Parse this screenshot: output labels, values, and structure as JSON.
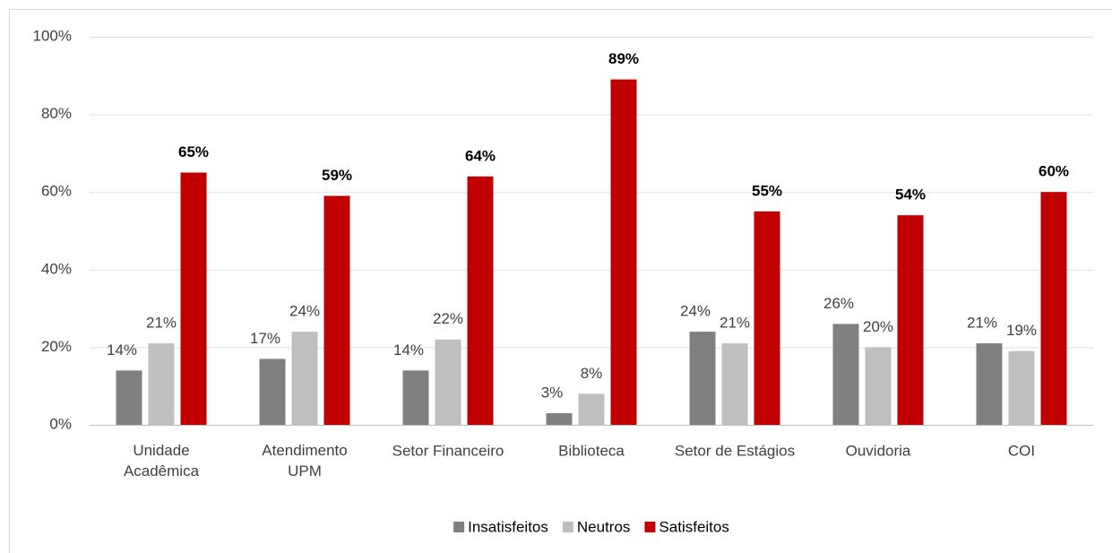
{
  "chart_data": {
    "type": "bar",
    "categories": [
      "Unidade Acadêmica",
      "Atendimento UPM",
      "Setor Financeiro",
      "Biblioteca",
      "Setor de Estágios",
      "Ouvidoria",
      "COI"
    ],
    "series": [
      {
        "name": "Insatisfeitos",
        "color": "#808080",
        "values": [
          14,
          17,
          14,
          3,
          24,
          26,
          21
        ],
        "value_labels": [
          "14%",
          "17%",
          "14%",
          "3%",
          "24%",
          "26%",
          "21%"
        ]
      },
      {
        "name": "Neutros",
        "color": "#bfbfbf",
        "values": [
          21,
          24,
          22,
          8,
          21,
          20,
          19
        ],
        "value_labels": [
          "21%",
          "24%",
          "22%",
          "8%",
          "21%",
          "20%",
          "19%"
        ]
      },
      {
        "name": "Satisfeitos",
        "color": "#c00000",
        "values": [
          65,
          59,
          64,
          89,
          55,
          54,
          60
        ],
        "value_labels": [
          "65%",
          "59%",
          "64%",
          "89%",
          "55%",
          "54%",
          "60%"
        ]
      }
    ],
    "ylim": [
      0,
      100
    ],
    "yticks": [
      {
        "value": 0,
        "label": "0%"
      },
      {
        "value": 20,
        "label": "20%"
      },
      {
        "value": 40,
        "label": "40%"
      },
      {
        "value": 60,
        "label": "60%"
      },
      {
        "value": 80,
        "label": "80%"
      },
      {
        "value": 100,
        "label": "100%"
      }
    ],
    "grid": true,
    "legend": "bottom"
  }
}
